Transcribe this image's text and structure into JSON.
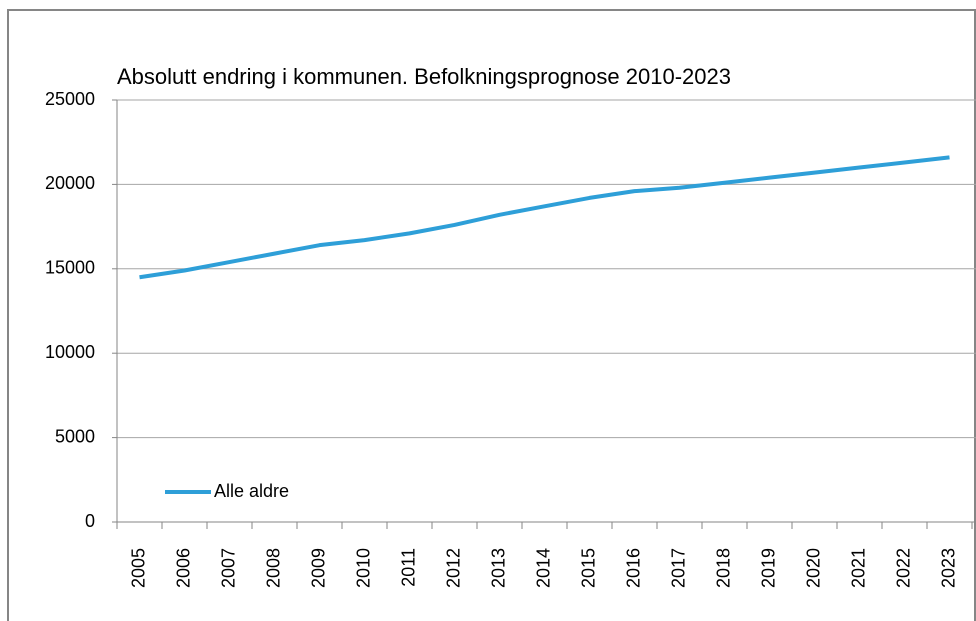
{
  "chart_data": {
    "type": "line",
    "title": "Absolutt endring i  kommunen. Befolkningsprognose 2010-2023",
    "categories": [
      "2005",
      "2006",
      "2007",
      "2008",
      "2009",
      "2010",
      "2011",
      "2012",
      "2013",
      "2014",
      "2015",
      "2016",
      "2017",
      "2018",
      "2019",
      "2020",
      "2021",
      "2022",
      "2023"
    ],
    "series": [
      {
        "name": "Alle aldre",
        "color": "#2e9fd8",
        "values": [
          14500,
          14900,
          15400,
          15900,
          16400,
          16700,
          17100,
          17600,
          18200,
          18700,
          19200,
          19600,
          19800,
          20100,
          20400,
          20700,
          21000,
          21300,
          21600
        ]
      }
    ],
    "ylim": [
      0,
      25000
    ],
    "yticks": [
      0,
      5000,
      10000,
      15000,
      20000,
      25000
    ],
    "grid": true,
    "legend": "lower left"
  }
}
